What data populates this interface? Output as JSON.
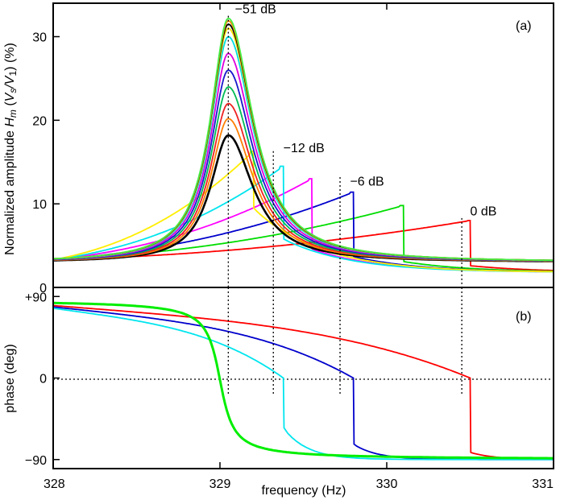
{
  "chart_data": [
    {
      "panel": "(a)",
      "type": "line",
      "ylabel_parts": [
        "Normalized amplitude ",
        "H",
        "m",
        " (",
        "V",
        "s",
        "/",
        "V",
        "1",
        ") (%)"
      ],
      "xlim": [
        328,
        331
      ],
      "ylim": [
        0,
        34
      ],
      "yticks": [
        0,
        10,
        20,
        30
      ],
      "ytick_labels": [
        "0",
        "10",
        "20",
        "30"
      ],
      "grid": false,
      "annotations": [
        {
          "text": "−51 dB",
          "x": 329.09,
          "y": 32.8
        },
        {
          "text": "−12 dB",
          "x": 329.38,
          "y": 16.2
        },
        {
          "text": "−6 dB",
          "x": 329.78,
          "y": 12.2
        },
        {
          "text": "0 dB",
          "x": 330.5,
          "y": 8.6
        }
      ],
      "dotted_lines": [
        {
          "x": 329.05,
          "y_top": 32.5
        },
        {
          "x": 329.32,
          "y_top": 16.3
        },
        {
          "x": 329.72,
          "y_top": 13.2
        },
        {
          "x": 330.45,
          "y_top": 8.3
        }
      ],
      "series": [
        {
          "color": "#ff0000",
          "peak": 8.0,
          "jump_x": 330.5,
          "jump_to": 2.6
        },
        {
          "color": "#00dd00",
          "peak": 9.8,
          "jump_x": 330.1,
          "jump_to": 3.1
        },
        {
          "color": "#0000cc",
          "peak": 11.4,
          "jump_x": 329.8,
          "jump_to": 3.7
        },
        {
          "color": "#ff00ff",
          "peak": 13.0,
          "jump_x": 329.55,
          "jump_to": 4.6
        },
        {
          "color": "#00e5ee",
          "peak": 14.5,
          "jump_x": 329.38,
          "jump_to": 5.8
        },
        {
          "color": "#ffee00",
          "peak": 16.3,
          "jump_x": 329.2,
          "jump_to": 9.5
        },
        {
          "color": "#000000",
          "peak": 18.2
        },
        {
          "color": "#ff7f00",
          "peak": 20.2
        },
        {
          "color": "#ee2222",
          "peak": 22.0
        },
        {
          "color": "#00bb55",
          "peak": 24.0
        },
        {
          "color": "#1818cc",
          "peak": 26.0
        },
        {
          "color": "#dd00dd",
          "peak": 28.0
        },
        {
          "color": "#00dddd",
          "peak": 30.0
        },
        {
          "color": "#ffe000",
          "peak": 31.0
        },
        {
          "color": "#000000",
          "peak": 31.5
        },
        {
          "color": "#ff8800",
          "peak": 31.9
        },
        {
          "color": "#44ee44",
          "peak": 32.2
        }
      ]
    },
    {
      "panel": "(b)",
      "type": "line",
      "xlabel": "frequency (Hz)",
      "ylabel": "phase (deg)",
      "xlim": [
        328,
        331
      ],
      "ylim": [
        -100,
        100
      ],
      "xticks": [
        328,
        329,
        330,
        331
      ],
      "xtick_labels": [
        "328",
        "329",
        "330",
        "331"
      ],
      "yticks": [
        90,
        0,
        -90
      ],
      "ytick_labels": [
        "+90",
        "0",
        "−90"
      ],
      "grid": false,
      "dotted_zero_line": true,
      "dotted_lines": [
        {
          "x": 329.05,
          "y_bottom": -20
        },
        {
          "x": 329.32,
          "y_bottom": -20
        },
        {
          "x": 329.72,
          "y_bottom": -20
        },
        {
          "x": 330.45,
          "y_bottom": -20
        }
      ],
      "series": [
        {
          "color": "#ff0000",
          "jump_x": 330.5,
          "jump_to": -82
        },
        {
          "color": "#0000cc",
          "jump_x": 329.8,
          "jump_to": -73
        },
        {
          "color": "#00e5ee",
          "jump_x": 329.38,
          "jump_to": -55
        },
        {
          "color": "#00ee00"
        }
      ]
    }
  ]
}
